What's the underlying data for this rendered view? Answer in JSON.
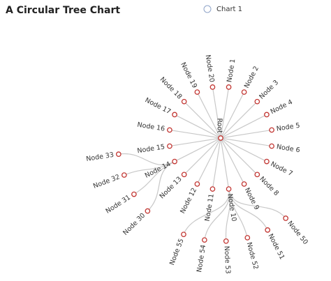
{
  "chart_data": {
    "type": "tree",
    "layout": "radial",
    "title": "A Circular Tree Chart",
    "series": [
      {
        "name": "Chart 1",
        "color": "#c23531"
      }
    ],
    "link_color": "#c8c8c8",
    "tree": {
      "name": "Root",
      "children": [
        {
          "name": "Node 1"
        },
        {
          "name": "Node 2"
        },
        {
          "name": "Node 3"
        },
        {
          "name": "Node 4"
        },
        {
          "name": "Node 5"
        },
        {
          "name": "Node 6"
        },
        {
          "name": "Node 7"
        },
        {
          "name": "Node 8"
        },
        {
          "name": "Node 9"
        },
        {
          "name": "Node 10",
          "children": [
            {
              "name": "Node 50"
            },
            {
              "name": "Node 51"
            },
            {
              "name": "Node 52"
            },
            {
              "name": "Node 53"
            },
            {
              "name": "Node 54"
            },
            {
              "name": "Node 55"
            }
          ]
        },
        {
          "name": "Node 11"
        },
        {
          "name": "Node 12"
        },
        {
          "name": "Node 13"
        },
        {
          "name": "Node 14",
          "children": [
            {
              "name": "Node 30"
            },
            {
              "name": "Node 31"
            },
            {
              "name": "Node 32"
            },
            {
              "name": "Node 33"
            }
          ]
        },
        {
          "name": "Node 15"
        },
        {
          "name": "Node 16"
        },
        {
          "name": "Node 17"
        },
        {
          "name": "Node 18"
        },
        {
          "name": "Node 19"
        },
        {
          "name": "Node 20"
        }
      ]
    }
  }
}
